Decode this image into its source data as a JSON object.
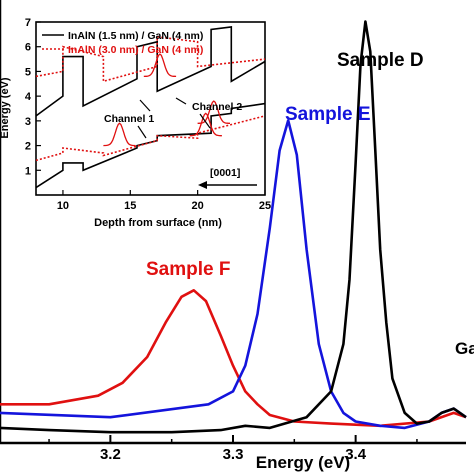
{
  "chart_data": [
    {
      "type": "line",
      "xlabel": "Energy (eV)",
      "ylabel": "",
      "xlim": [
        3.11,
        3.49
      ],
      "ylim": [
        -0.03,
        1.0
      ],
      "xticks": [
        3.2,
        3.3,
        3.4
      ],
      "xtick_labels": [
        "3.2",
        "3.3",
        "3.4"
      ],
      "series": [
        {
          "name": "Sample D",
          "color": "#000000",
          "x": [
            3.11,
            3.15,
            3.2,
            3.25,
            3.29,
            3.31,
            3.33,
            3.36,
            3.38,
            3.39,
            3.395,
            3.4,
            3.404,
            3.408,
            3.412,
            3.416,
            3.42,
            3.425,
            3.43,
            3.44,
            3.45,
            3.46,
            3.47,
            3.48,
            3.49
          ],
          "y": [
            0.005,
            0.0,
            -0.005,
            -0.005,
            0.0,
            0.01,
            0.005,
            0.03,
            0.09,
            0.2,
            0.35,
            0.62,
            0.85,
            0.95,
            0.88,
            0.65,
            0.42,
            0.25,
            0.12,
            0.04,
            0.015,
            0.02,
            0.04,
            0.05,
            0.03
          ]
        },
        {
          "name": "Sample E",
          "color": "#1414dc",
          "x": [
            3.11,
            3.2,
            3.28,
            3.3,
            3.31,
            3.32,
            3.33,
            3.338,
            3.345,
            3.352,
            3.36,
            3.37,
            3.38,
            3.39,
            3.4,
            3.42,
            3.44,
            3.46,
            3.47,
            3.48,
            3.49
          ],
          "y": [
            0.04,
            0.03,
            0.06,
            0.09,
            0.15,
            0.27,
            0.47,
            0.65,
            0.72,
            0.64,
            0.42,
            0.2,
            0.09,
            0.04,
            0.02,
            0.01,
            0.005,
            0.02,
            0.04,
            0.05,
            0.03
          ]
        },
        {
          "name": "Sample F",
          "color": "#e01010",
          "x": [
            3.11,
            3.15,
            3.19,
            3.21,
            3.23,
            3.245,
            3.258,
            3.268,
            3.278,
            3.29,
            3.3,
            3.31,
            3.32,
            3.33,
            3.35,
            3.38,
            3.42,
            3.46,
            3.48,
            3.49
          ],
          "y": [
            0.06,
            0.06,
            0.08,
            0.11,
            0.17,
            0.25,
            0.31,
            0.325,
            0.3,
            0.22,
            0.15,
            0.09,
            0.06,
            0.035,
            0.02,
            0.015,
            0.01,
            0.02,
            0.04,
            0.03
          ]
        }
      ],
      "annotations": [
        "Sample D",
        "Sample E",
        "Sample F",
        "Ga"
      ]
    },
    {
      "type": "line",
      "xlabel": "Depth from surface (nm)",
      "ylabel": "Energy (eV)",
      "xlim": [
        8,
        25
      ],
      "ylim": [
        0,
        7
      ],
      "xticks": [
        10,
        15,
        20,
        25
      ],
      "yticks": [
        1,
        2,
        3,
        4,
        5,
        6,
        7
      ],
      "legend_position": "top-left",
      "series": [
        {
          "name": "InAlN (1.5 nm) / GaN (4 nm)",
          "color": "#000000",
          "style": "solid",
          "band_edges": [
            {
              "x": [
                8,
                10,
                10,
                11.5,
                11.5,
                15.5,
                15.5,
                17,
                17,
                21,
                21,
                22.5,
                22.5,
                25
              ],
              "y": [
                3.2,
                4.0,
                5.6,
                5.6,
                3.6,
                4.7,
                6.0,
                6.2,
                4.2,
                5.2,
                6.7,
                6.8,
                4.6,
                5.4
              ]
            },
            {
              "x": [
                8,
                10,
                10,
                11.5,
                11.5,
                15.5,
                15.5,
                17,
                17,
                21,
                21,
                22.5,
                22.5,
                25
              ],
              "y": [
                0.3,
                1.0,
                1.3,
                1.3,
                1.0,
                1.9,
                2.0,
                2.2,
                2.4,
                2.5,
                3.2,
                3.3,
                3.5,
                3.7
              ]
            }
          ]
        },
        {
          "name": "InAlN (3.0 nm) / GaN (4 nm)",
          "color": "#e01010",
          "style": "dotted",
          "band_edges": [
            {
              "x": [
                8,
                10,
                10,
                13,
                13,
                17,
                17,
                20,
                20,
                25
              ],
              "y": [
                4.8,
                5.0,
                6.0,
                5.6,
                4.6,
                5.2,
                6.4,
                6.2,
                5.2,
                5.5
              ]
            },
            {
              "x": [
                8,
                10,
                10,
                13,
                13,
                17,
                17,
                20,
                20,
                25
              ],
              "y": [
                1.4,
                1.7,
                1.9,
                1.7,
                1.6,
                2.2,
                2.4,
                2.3,
                2.5,
                3.2
              ]
            }
          ],
          "wavefunctions_x": [
            14.2,
            17.2,
            20.6,
            21.2
          ]
        }
      ],
      "annotations": [
        "Channel 1",
        "Channel 2",
        "[0001]"
      ]
    }
  ]
}
